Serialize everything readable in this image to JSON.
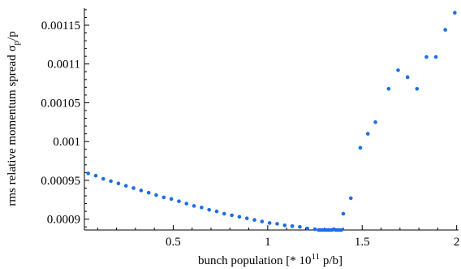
{
  "chart_data": {
    "type": "scatter",
    "xlabel": {
      "main": "bunch population  [* 10",
      "sup": "11",
      "tail": " p/b]"
    },
    "ylabel": {
      "main": "rms relative momentum spread σ",
      "sub": "p",
      "tail": "/p"
    },
    "xlim": [
      0.03,
      2.01
    ],
    "ylim": [
      0.000886,
      0.001172
    ],
    "xticks": [
      {
        "value": 0.5,
        "label": "0.5"
      },
      {
        "value": 1,
        "label": "1"
      },
      {
        "value": 1.5,
        "label": "1.5"
      },
      {
        "value": 2,
        "label": "2"
      }
    ],
    "yticks": [
      {
        "value": 0.0009,
        "label": "0.0009"
      },
      {
        "value": 0.00095,
        "label": "0.00095"
      },
      {
        "value": 0.001,
        "label": "0.001"
      },
      {
        "value": 0.00105,
        "label": "0.00105"
      },
      {
        "value": 0.0011,
        "label": "0.0011"
      },
      {
        "value": 0.00115,
        "label": "0.00115"
      }
    ],
    "color": "#1a6fe8",
    "grid": false,
    "series": [
      {
        "points": [
          [
            0.05,
            0.000959
          ],
          [
            0.09,
            0.000956
          ],
          [
            0.13,
            0.000952
          ],
          [
            0.17,
            0.000949
          ],
          [
            0.21,
            0.000946
          ],
          [
            0.25,
            0.000943
          ],
          [
            0.29,
            0.00094
          ],
          [
            0.33,
            0.000937
          ],
          [
            0.37,
            0.000934
          ],
          [
            0.41,
            0.000931
          ],
          [
            0.45,
            0.000928
          ],
          [
            0.49,
            0.000926
          ],
          [
            0.53,
            0.000923
          ],
          [
            0.57,
            0.00092
          ],
          [
            0.61,
            0.000917
          ],
          [
            0.65,
            0.000915
          ],
          [
            0.69,
            0.000912
          ],
          [
            0.73,
            0.00091
          ],
          [
            0.77,
            0.000907
          ],
          [
            0.81,
            0.000905
          ],
          [
            0.85,
            0.000903
          ],
          [
            0.89,
            0.000901
          ],
          [
            0.93,
            0.000899
          ],
          [
            0.97,
            0.000897
          ],
          [
            1.01,
            0.000895
          ],
          [
            1.05,
            0.000894
          ],
          [
            1.09,
            0.000892
          ],
          [
            1.13,
            0.000891
          ],
          [
            1.17,
            0.00089
          ],
          [
            1.21,
            0.000888
          ],
          [
            1.25,
            0.000887
          ],
          [
            1.27,
            0.000886
          ],
          [
            1.28,
            0.000886
          ],
          [
            1.29,
            0.000886
          ],
          [
            1.3,
            0.000886
          ],
          [
            1.31,
            0.000886
          ],
          [
            1.32,
            0.000886
          ],
          [
            1.33,
            0.000886
          ],
          [
            1.34,
            0.000886
          ],
          [
            1.35,
            0.000887
          ],
          [
            1.36,
            0.000886
          ],
          [
            1.37,
            0.000886
          ],
          [
            1.38,
            0.000886
          ],
          [
            1.39,
            0.000886
          ],
          [
            1.4,
            0.000907
          ],
          [
            1.44,
            0.000927
          ],
          [
            1.49,
            0.000992
          ],
          [
            1.53,
            0.00101
          ],
          [
            1.57,
            0.001025
          ],
          [
            1.64,
            0.001068
          ],
          [
            1.69,
            0.001092
          ],
          [
            1.74,
            0.001083
          ],
          [
            1.79,
            0.001068
          ],
          [
            1.84,
            0.001109
          ],
          [
            1.89,
            0.001109
          ],
          [
            1.94,
            0.001144
          ],
          [
            1.99,
            0.001166
          ]
        ]
      }
    ]
  }
}
